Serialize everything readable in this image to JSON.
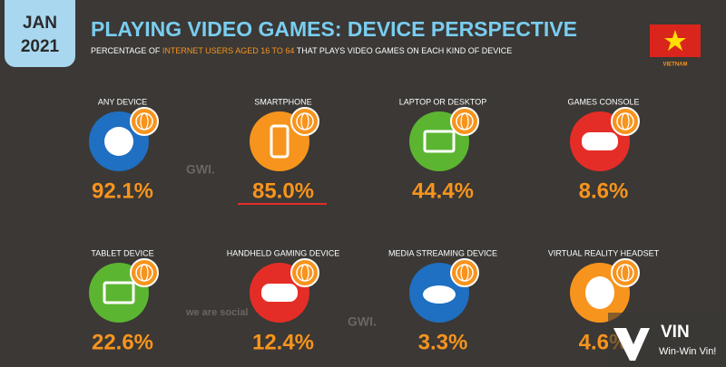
{
  "header": {
    "month": "JAN",
    "year": "2021",
    "title": "PLAYING VIDEO GAMES: DEVICE PERSPECTIVE",
    "subtitle": [
      "PERCENTAGE OF ",
      "INTERNET USERS AGED 16 TO 64",
      " THAT PLAYS VIDEO GAMES ON EACH KIND OF DEVICE"
    ],
    "country": "VIETNAM"
  },
  "items": [
    {
      "label": "ANY DEVICE",
      "value": "92.1%"
    },
    {
      "label": "SMARTPHONE",
      "value": "85.0%"
    },
    {
      "label": "LAPTOP OR DESKTOP",
      "value": "44.4%"
    },
    {
      "label": "GAMES CONSOLE",
      "value": "8.6%"
    },
    {
      "label": "TABLET DEVICE",
      "value": "22.6%"
    },
    {
      "label": "HANDHELD GAMING DEVICE",
      "value": "12.4%"
    },
    {
      "label": "MEDIA STREAMING DEVICE",
      "value": "3.3%"
    },
    {
      "label": "VIRTUAL REALITY HEADSET",
      "value": "4.6%"
    }
  ],
  "watermarks": {
    "gwi": "GWI.",
    "was": "we are social",
    "brand": "VIN",
    "slogan": "Win-Win Vin!"
  }
}
